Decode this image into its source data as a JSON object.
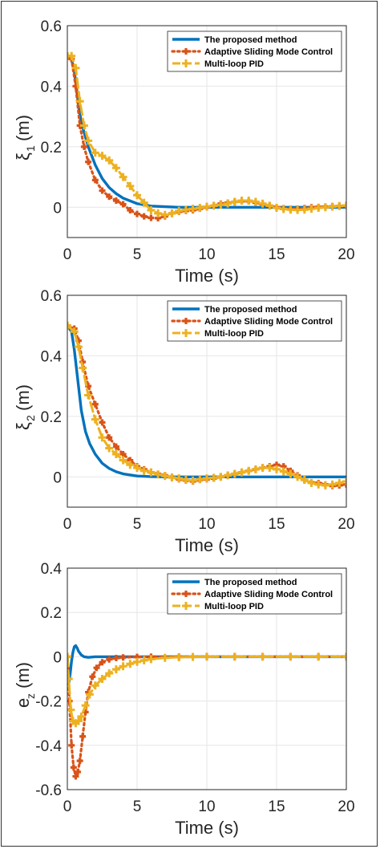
{
  "colors": {
    "proposed": "#0072BD",
    "asmc": "#D95319",
    "pid": "#EDB120",
    "grid": "#e6e6e6",
    "axis": "#262626"
  },
  "chart_data": [
    {
      "type": "line",
      "ylabel_main": "ξ",
      "ylabel_sub": "1",
      "ylabel_unit": "(m)",
      "xlabel": "Time (s)",
      "xlim": [
        0,
        20
      ],
      "ylim": [
        -0.1,
        0.6
      ],
      "xticks": [
        "0",
        "5",
        "10",
        "15",
        "20"
      ],
      "yticks": [
        "0",
        "0.2",
        "0.4",
        "0.6"
      ],
      "grid": true,
      "legend": "top-right",
      "series": [
        {
          "name": "The proposed method",
          "x": [
            0,
            0.3,
            0.5,
            0.8,
            1,
            1.5,
            2,
            2.5,
            3,
            3.5,
            4,
            5,
            6,
            8,
            10,
            12,
            14,
            16,
            18,
            20
          ],
          "y": [
            0.5,
            0.49,
            0.45,
            0.34,
            0.28,
            0.2,
            0.14,
            0.095,
            0.065,
            0.045,
            0.03,
            0.012,
            0.004,
            0,
            0,
            0,
            0,
            0,
            0,
            0
          ]
        },
        {
          "name": "Adaptive Sliding Mode Control",
          "x": [
            0,
            0.3,
            0.6,
            0.9,
            1.2,
            1.5,
            2,
            2.5,
            3,
            3.5,
            4,
            4.5,
            5,
            5.5,
            6,
            6.5,
            7,
            7.5,
            8,
            8.5,
            9,
            9.5,
            10,
            10.5,
            11,
            11.5,
            12,
            12.5,
            13,
            13.5,
            14,
            14.5,
            15,
            15.5,
            16,
            16.5,
            17,
            17.5,
            18,
            18.5,
            19,
            19.5,
            20
          ],
          "y": [
            0.5,
            0.49,
            0.4,
            0.27,
            0.2,
            0.15,
            0.09,
            0.055,
            0.035,
            0.022,
            0.01,
            -0.01,
            -0.022,
            -0.03,
            -0.035,
            -0.036,
            -0.03,
            -0.02,
            -0.015,
            -0.012,
            -0.01,
            -0.005,
            0,
            0.005,
            0.012,
            0.015,
            0.018,
            0.02,
            0.02,
            0.015,
            0.01,
            0.005,
            0,
            -0.003,
            -0.005,
            -0.005,
            -0.003,
            0,
            0.001,
            0.002,
            0.003,
            0.004,
            0.005
          ]
        },
        {
          "name": "Multi-loop PID",
          "x": [
            0,
            0.3,
            0.6,
            0.9,
            1.2,
            1.5,
            2,
            2.5,
            3,
            3.5,
            4,
            4.5,
            5,
            5.5,
            6,
            6.5,
            7,
            7.5,
            8,
            8.5,
            9,
            9.5,
            10,
            10.5,
            11,
            11.5,
            12,
            12.5,
            13,
            13.5,
            14,
            14.5,
            15,
            15.5,
            16,
            16.5,
            17,
            17.5,
            18,
            18.5,
            19,
            19.5,
            20
          ],
          "y": [
            0.5,
            0.5,
            0.46,
            0.35,
            0.27,
            0.22,
            0.18,
            0.17,
            0.155,
            0.13,
            0.1,
            0.07,
            0.04,
            0.015,
            -0.01,
            -0.02,
            -0.025,
            -0.02,
            -0.012,
            -0.008,
            -0.005,
            -0.002,
            0.002,
            0.005,
            0.008,
            0.012,
            0.018,
            0.022,
            0.022,
            0.018,
            0.012,
            0.005,
            -0.002,
            -0.006,
            -0.008,
            -0.009,
            -0.008,
            -0.005,
            -0.002,
            0,
            0.002,
            0.004,
            0.006
          ]
        }
      ]
    },
    {
      "type": "line",
      "ylabel_main": "ξ",
      "ylabel_sub": "2",
      "ylabel_unit": "(m)",
      "xlabel": "Time (s)",
      "xlim": [
        0,
        20
      ],
      "ylim": [
        -0.1,
        0.6
      ],
      "xticks": [
        "0",
        "5",
        "10",
        "15",
        "20"
      ],
      "yticks": [
        "0",
        "0.2",
        "0.4",
        "0.6"
      ],
      "grid": true,
      "legend": "top-right",
      "series": [
        {
          "name": "The proposed method",
          "x": [
            0,
            0.3,
            0.5,
            0.8,
            1,
            1.3,
            1.6,
            2,
            2.5,
            3,
            3.5,
            4,
            5,
            6,
            7,
            8,
            10,
            12,
            14,
            16,
            18,
            20
          ],
          "y": [
            0.5,
            0.48,
            0.42,
            0.3,
            0.22,
            0.15,
            0.11,
            0.075,
            0.045,
            0.028,
            0.017,
            0.01,
            0.003,
            0.001,
            0,
            0,
            0,
            0,
            0,
            0,
            0,
            0
          ]
        },
        {
          "name": "Adaptive Sliding Mode Control",
          "x": [
            0,
            0.5,
            0.8,
            1.1,
            1.5,
            2,
            2.5,
            3,
            3.5,
            4,
            4.5,
            5,
            5.5,
            6,
            6.5,
            7,
            7.5,
            8,
            8.5,
            9,
            9.5,
            10,
            10.5,
            11,
            11.5,
            12,
            12.5,
            13,
            13.5,
            14,
            14.5,
            15,
            15.5,
            16,
            16.5,
            17,
            17.5,
            18,
            18.5,
            19,
            19.5,
            20
          ],
          "y": [
            0.5,
            0.49,
            0.45,
            0.38,
            0.3,
            0.24,
            0.18,
            0.13,
            0.1,
            0.075,
            0.055,
            0.035,
            0.025,
            0.015,
            0.01,
            0.005,
            -0.002,
            -0.008,
            -0.012,
            -0.015,
            -0.01,
            -0.008,
            -0.005,
            0,
            0.005,
            0.01,
            0.015,
            0.02,
            0.025,
            0.03,
            0.035,
            0.04,
            0.035,
            0.02,
            0.005,
            -0.01,
            -0.018,
            -0.02,
            -0.025,
            -0.03,
            -0.028,
            -0.025
          ]
        },
        {
          "name": "Multi-loop PID",
          "x": [
            0,
            0.5,
            0.8,
            1.1,
            1.5,
            2,
            2.5,
            3,
            3.5,
            4,
            4.5,
            5,
            5.5,
            6,
            6.5,
            7,
            7.5,
            8,
            8.5,
            9,
            9.5,
            10,
            10.5,
            11,
            11.5,
            12,
            12.5,
            13,
            13.5,
            14,
            14.5,
            15,
            15.5,
            16,
            16.5,
            17,
            17.5,
            18,
            18.5,
            19,
            19.5,
            20
          ],
          "y": [
            0.5,
            0.48,
            0.43,
            0.36,
            0.27,
            0.19,
            0.13,
            0.095,
            0.075,
            0.055,
            0.04,
            0.03,
            0.02,
            0.015,
            0.008,
            0.003,
            -0.002,
            -0.005,
            -0.01,
            -0.012,
            -0.008,
            -0.005,
            -0.003,
            0,
            0.005,
            0.01,
            0.015,
            0.02,
            0.025,
            0.03,
            0.03,
            0.025,
            0.018,
            0.01,
            0,
            -0.01,
            -0.02,
            -0.025,
            -0.028,
            -0.025,
            -0.02,
            -0.015
          ]
        }
      ]
    },
    {
      "type": "line",
      "ylabel_main": "e",
      "ylabel_sub": "z",
      "ylabel_unit": "(m)",
      "xlabel": "Time (s)",
      "xlim": [
        0,
        20
      ],
      "ylim": [
        -0.6,
        0.4
      ],
      "xticks": [
        "0",
        "5",
        "10",
        "15",
        "20"
      ],
      "yticks": [
        "-0.6",
        "-0.4",
        "-0.2",
        "0",
        "0.2",
        "0.4"
      ],
      "grid": true,
      "legend": "top-right",
      "series": [
        {
          "name": "The proposed method",
          "x": [
            0,
            0.1,
            0.2,
            0.3,
            0.4,
            0.5,
            0.6,
            0.7,
            0.8,
            1,
            1.2,
            1.5,
            2,
            3,
            5,
            10,
            15,
            20
          ],
          "y": [
            0,
            -0.12,
            -0.08,
            -0.02,
            0.02,
            0.045,
            0.05,
            0.04,
            0.025,
            0.008,
            0,
            -0.003,
            0,
            0,
            0,
            0,
            0,
            0
          ]
        },
        {
          "name": "Adaptive Sliding Mode Control",
          "x": [
            0,
            0.15,
            0.3,
            0.45,
            0.6,
            0.75,
            0.9,
            1.1,
            1.3,
            1.5,
            1.8,
            2.1,
            2.5,
            3,
            3.5,
            4,
            5,
            6,
            8,
            10,
            12,
            14,
            16,
            18,
            20
          ],
          "y": [
            0,
            -0.2,
            -0.4,
            -0.5,
            -0.54,
            -0.52,
            -0.47,
            -0.36,
            -0.25,
            -0.16,
            -0.09,
            -0.05,
            -0.025,
            -0.012,
            -0.006,
            -0.003,
            -0.001,
            0,
            0,
            0,
            0,
            0,
            0,
            0,
            0
          ]
        },
        {
          "name": "Multi-loop PID",
          "x": [
            0,
            0.1,
            0.25,
            0.4,
            0.6,
            0.8,
            1,
            1.3,
            1.6,
            2,
            2.5,
            3,
            3.5,
            4,
            4.5,
            5,
            5.5,
            6,
            7,
            8,
            9,
            10,
            12,
            14,
            16,
            18,
            20
          ],
          "y": [
            0,
            -0.1,
            -0.24,
            -0.29,
            -0.3,
            -0.29,
            -0.27,
            -0.22,
            -0.17,
            -0.13,
            -0.1,
            -0.075,
            -0.057,
            -0.043,
            -0.032,
            -0.023,
            -0.016,
            -0.011,
            -0.005,
            -0.002,
            -0.001,
            0,
            0,
            0,
            0,
            0,
            0
          ]
        }
      ]
    }
  ]
}
